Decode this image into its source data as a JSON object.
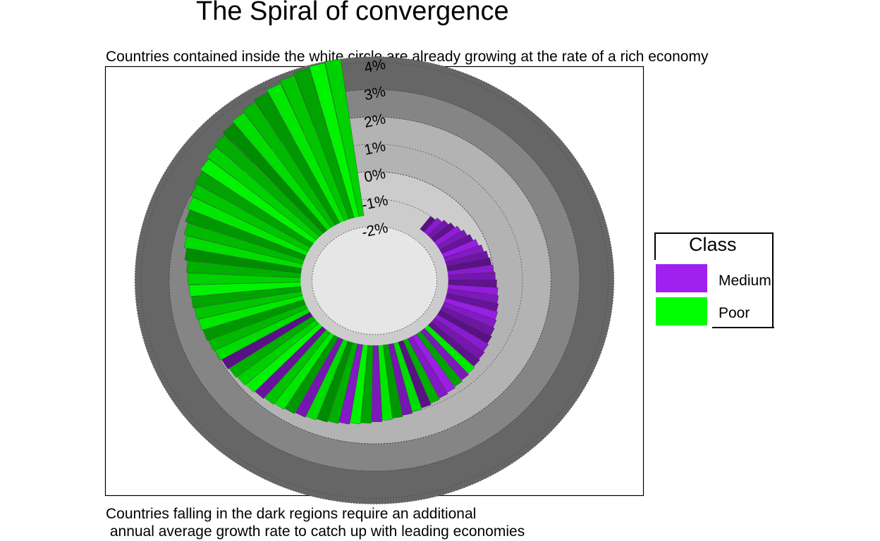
{
  "chart_data": {
    "type": "bar",
    "variant": "spiral-polar-bar",
    "title": "The Spiral of convergence",
    "subtitle": "Countries contained inside the white circle are already growing at the rate of a rich economy",
    "caption_line1": "Countries falling in the dark regions require an additional",
    "caption_line2": " annual average growth rate to catch up with leading economies",
    "radial_axis": {
      "label_format": "percent",
      "ticks": [
        -2,
        -1,
        0,
        1,
        2,
        3,
        4
      ],
      "tick_labels": [
        "-2%",
        "-1%",
        "0%",
        "1%",
        "2%",
        "3%",
        "4%"
      ],
      "rmin": -3.0,
      "rmax": 4.2
    },
    "bands": [
      {
        "from": -3,
        "to": -2,
        "color": "#e6e6e6"
      },
      {
        "from": -2,
        "to": 0,
        "color": "#cccccc"
      },
      {
        "from": 0,
        "to": 2,
        "color": "#b3b3b3"
      },
      {
        "from": 2,
        "to": 3,
        "color": "#858585"
      },
      {
        "from": 3,
        "to": 4.2,
        "color": "#666666"
      }
    ],
    "legend": {
      "title": "Class",
      "position": "right",
      "entries": [
        {
          "name": "Medium",
          "color": "#a020f0"
        },
        {
          "name": "Poor",
          "color": "#00ff00"
        }
      ]
    },
    "bar_values": [
      -1.0,
      -0.9,
      -0.8,
      -0.7,
      -0.6,
      -0.5,
      -0.4,
      -0.3,
      -0.2,
      -0.1,
      -0.05,
      0.0,
      0.05,
      0.1,
      0.15,
      0.2,
      0.25,
      0.3,
      0.35,
      0.4,
      0.45,
      0.5,
      0.55,
      0.6,
      0.65,
      0.7,
      0.75,
      0.8,
      0.85,
      0.9,
      0.95,
      1.0,
      1.05,
      1.1,
      1.15,
      1.2,
      1.25,
      1.3,
      1.35,
      1.4,
      1.45,
      1.5,
      1.55,
      1.6,
      1.65,
      1.7,
      1.75,
      1.8,
      1.85,
      1.9,
      1.95,
      2.0,
      2.05,
      2.1,
      2.15,
      2.2,
      2.25,
      2.3,
      2.35,
      2.4,
      2.5,
      2.6,
      2.7,
      2.8,
      2.9,
      3.0,
      3.1,
      3.2,
      3.3,
      3.4,
      3.5,
      3.6,
      3.7,
      3.8,
      3.9,
      4.0,
      4.1,
      4.15,
      4.2
    ],
    "bar_classes": [
      "Medium",
      "Medium",
      "Medium",
      "Medium",
      "Medium",
      "Medium",
      "Medium",
      "Medium",
      "Medium",
      "Medium",
      "Medium",
      "Medium",
      "Medium",
      "Medium",
      "Medium",
      "Medium",
      "Medium",
      "Medium",
      "Medium",
      "Medium",
      "Medium",
      "Medium",
      "Medium",
      "Medium",
      "Poor",
      "Medium",
      "Poor",
      "Medium",
      "Medium",
      "Poor",
      "Medium",
      "Poor",
      "Medium",
      "Poor",
      "Poor",
      "Medium",
      "Poor",
      "Poor",
      "Medium",
      "Poor",
      "Poor",
      "Poor",
      "Medium",
      "Poor",
      "Poor",
      "Poor",
      "Medium",
      "Poor",
      "Poor",
      "Poor",
      "Medium",
      "Poor",
      "Poor",
      "Poor",
      "Poor",
      "Poor",
      "Poor",
      "Poor",
      "Poor",
      "Poor",
      "Poor",
      "Poor",
      "Poor",
      "Poor",
      "Poor",
      "Poor",
      "Poor",
      "Poor",
      "Poor",
      "Poor",
      "Poor",
      "Poor",
      "Poor",
      "Poor",
      "Poor",
      "Poor",
      "Poor",
      "Poor",
      "Poor"
    ]
  }
}
